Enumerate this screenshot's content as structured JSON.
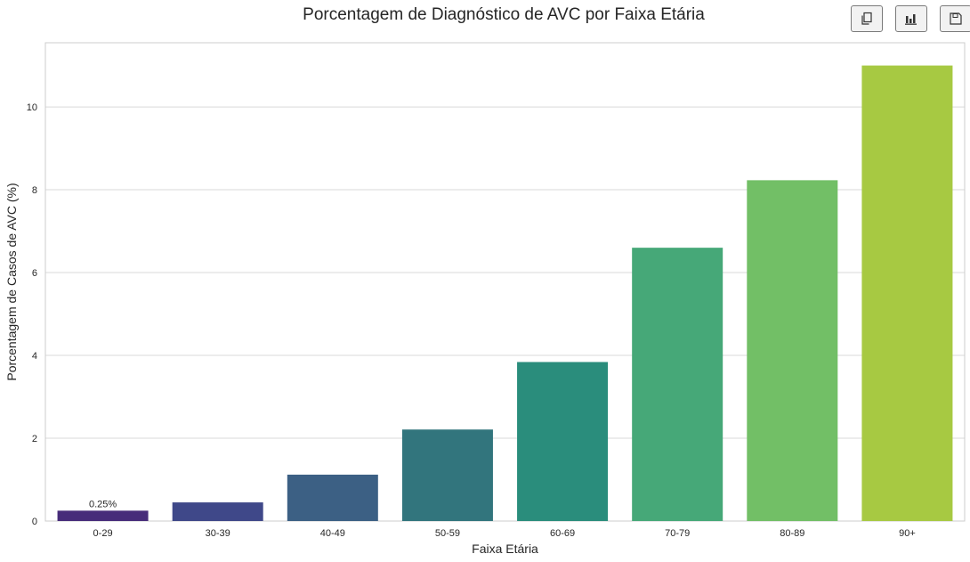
{
  "toolbar": {
    "buttons": [
      {
        "name": "copy-button",
        "icon": "copy-icon"
      },
      {
        "name": "chart-button",
        "icon": "bar-chart-icon"
      },
      {
        "name": "save-button",
        "icon": "floppy-disk-icon"
      }
    ]
  },
  "chart_data": {
    "type": "bar",
    "title": "Porcentagem de Diagnóstico de AVC por Faixa Etária",
    "xlabel": "Faixa Etária",
    "ylabel": "Porcentagem de Casos de AVC (%)",
    "categories": [
      "0-29",
      "30-39",
      "40-49",
      "50-59",
      "60-69",
      "70-79",
      "80-89",
      "90+"
    ],
    "values": [
      0.25,
      0.45,
      1.12,
      2.21,
      3.84,
      6.6,
      8.23,
      11.0
    ],
    "data_labels": [
      {
        "category": "0-29",
        "text": "0.25%"
      }
    ],
    "ylim": [
      0,
      11.55
    ],
    "yticks": [
      0,
      2,
      4,
      6,
      8,
      10
    ],
    "grid": "horizontal",
    "colors": [
      "#472d7b",
      "#424086",
      "#3b528b",
      "#33638d",
      "#2c728e",
      "#21918c",
      "#28ae80",
      "#5ec962",
      "#addc30"
    ],
    "bar_colors": [
      "#472c7a",
      "#3f4889",
      "#3c6084",
      "#32757d",
      "#2a8d7c",
      "#46a878",
      "#72bf66",
      "#a7c942"
    ],
    "style": {
      "gridColor": "#d9d9d9",
      "frameColor": "#cccccc"
    }
  }
}
